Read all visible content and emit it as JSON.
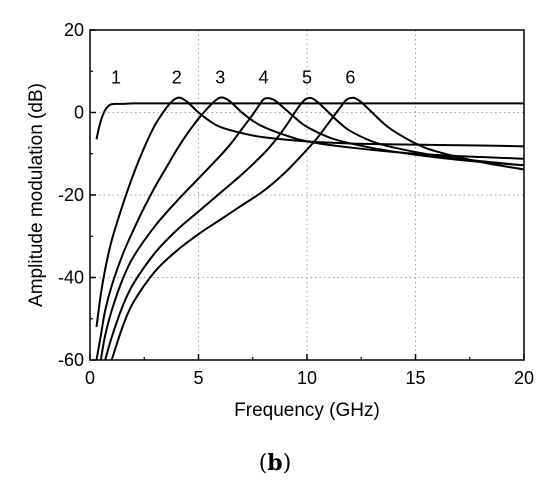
{
  "chart_data": {
    "type": "line",
    "xlabel": "Frequency (GHz)",
    "ylabel": "Amplitude modulation (dB)",
    "xlim": [
      0,
      20
    ],
    "ylim": [
      -60,
      20
    ],
    "xticks": [
      0,
      5,
      10,
      15,
      20
    ],
    "yticks": [
      -60,
      -40,
      -20,
      0,
      20
    ],
    "grid": "dotted",
    "panel_label": {
      "open": "(",
      "letter": "b",
      "close": ")"
    },
    "colors": {
      "line": "#000000",
      "grid": "#a0a0a0",
      "axis": "#000000"
    },
    "series": [
      {
        "label": "1",
        "label_at": [
          1.2,
          7
        ],
        "x": [
          0.3,
          0.4,
          0.5,
          0.6,
          0.7,
          0.8,
          0.9,
          1.0,
          1.2,
          1.5,
          2.0,
          3.0,
          5.0,
          10.0,
          15.0,
          20.0
        ],
        "y": [
          -6.5,
          -4.0,
          -2.0,
          -0.5,
          0.6,
          1.3,
          1.8,
          2.0,
          2.1,
          2.1,
          2.2,
          2.2,
          2.2,
          2.2,
          2.2,
          2.2
        ]
      },
      {
        "label": "2",
        "label_at": [
          4.0,
          7
        ],
        "x": [
          0.3,
          0.5,
          0.7,
          1.0,
          1.5,
          2.0,
          2.5,
          3.0,
          3.5,
          3.8,
          4.0,
          4.2,
          4.5,
          5.0,
          5.5,
          6.0,
          7.0,
          8.0,
          10.0,
          12.0,
          15.0,
          18.0,
          20.0
        ],
        "y": [
          -52,
          -44,
          -38,
          -31,
          -22.5,
          -15,
          -8.5,
          -3,
          1.0,
          2.8,
          3.5,
          3.5,
          2.5,
          0,
          -2.0,
          -3.5,
          -5.0,
          -6.0,
          -7.0,
          -7.5,
          -7.8,
          -8.0,
          -8.2
        ]
      },
      {
        "label": "3",
        "label_at": [
          6.0,
          7
        ],
        "x": [
          0.3,
          0.5,
          0.7,
          1.0,
          1.5,
          2.0,
          2.5,
          3.0,
          3.5,
          4.0,
          4.5,
          5.0,
          5.5,
          5.8,
          6.0,
          6.2,
          6.5,
          7.0,
          7.5,
          8.0,
          9.0,
          10.0,
          12.0,
          15.0,
          18.0,
          20.0
        ],
        "y": [
          -60,
          -54,
          -48,
          -42,
          -34.5,
          -28.5,
          -23,
          -18,
          -13.5,
          -9,
          -5,
          -1.5,
          1.5,
          3.0,
          3.6,
          3.5,
          2.5,
          0,
          -2.0,
          -3.5,
          -5.5,
          -7.0,
          -8.5,
          -10.0,
          -10.8,
          -11.2
        ]
      },
      {
        "label": "4",
        "label_at": [
          8.0,
          7
        ],
        "x": [
          0.5,
          0.7,
          1.0,
          1.5,
          2.0,
          3.0,
          4.0,
          5.0,
          6.0,
          6.5,
          7.0,
          7.5,
          7.8,
          8.0,
          8.2,
          8.5,
          9.0,
          9.5,
          10.0,
          11.0,
          12.0,
          14.0,
          17.0,
          20.0
        ],
        "y": [
          -60,
          -54,
          -48,
          -40.5,
          -35,
          -27.5,
          -21.5,
          -16,
          -10.5,
          -7.5,
          -4,
          -0.5,
          1.8,
          3.2,
          3.5,
          3.0,
          0.8,
          -1.5,
          -3.5,
          -6.0,
          -7.5,
          -9.5,
          -11.5,
          -12.8
        ]
      },
      {
        "label": "5",
        "label_at": [
          10.0,
          7
        ],
        "x": [
          0.7,
          1.0,
          1.5,
          2.0,
          3.0,
          4.0,
          5.0,
          6.0,
          7.0,
          8.0,
          8.5,
          9.0,
          9.5,
          9.8,
          10.0,
          10.2,
          10.5,
          11.0,
          11.5,
          12.0,
          13.0,
          14.0,
          16.0,
          18.0,
          20.0
        ],
        "y": [
          -60,
          -54.5,
          -47,
          -41.5,
          -34,
          -28.5,
          -24,
          -19.5,
          -15,
          -10,
          -7,
          -3.5,
          0.5,
          2.6,
          3.4,
          3.5,
          2.5,
          0,
          -2.5,
          -4.5,
          -7.0,
          -8.5,
          -10.5,
          -11.8,
          -12.8
        ]
      },
      {
        "label": "6",
        "label_at": [
          12.0,
          7
        ],
        "x": [
          1.0,
          1.5,
          2.0,
          3.0,
          4.0,
          5.0,
          6.0,
          7.0,
          8.0,
          9.0,
          10.0,
          10.5,
          11.0,
          11.5,
          11.8,
          12.0,
          12.2,
          12.5,
          13.0,
          13.5,
          14.0,
          15.0,
          16.0,
          18.0,
          20.0
        ],
        "y": [
          -60,
          -52,
          -46,
          -38.5,
          -33.5,
          -29.5,
          -26,
          -22.5,
          -19,
          -14.5,
          -9,
          -6,
          -2.5,
          1.0,
          3.0,
          3.5,
          3.5,
          2.5,
          0,
          -2.5,
          -4.5,
          -7.5,
          -9.5,
          -12.0,
          -13.8
        ]
      }
    ]
  }
}
